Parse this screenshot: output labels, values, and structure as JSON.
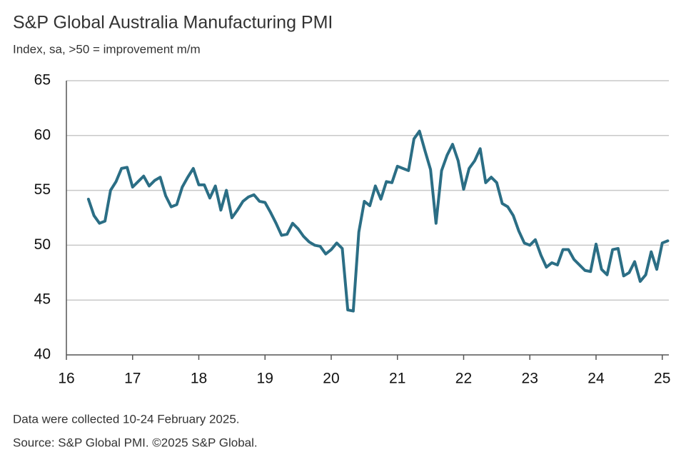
{
  "chart_data": {
    "type": "line",
    "title": "S&P Global Australia Manufacturing PMI",
    "subtitle": "Index, sa, >50 = improvement m/m",
    "notes": [
      "Data were collected 10-24 February 2025.",
      "Source: S&P Global PMI. ©2025 S&P Global."
    ],
    "x": [
      16.333,
      16.417,
      16.5,
      16.583,
      16.667,
      16.75,
      16.833,
      16.917,
      17,
      17.083,
      17.167,
      17.25,
      17.333,
      17.417,
      17.5,
      17.583,
      17.667,
      17.75,
      17.833,
      17.917,
      18,
      18.083,
      18.167,
      18.25,
      18.333,
      18.417,
      18.5,
      18.583,
      18.667,
      18.75,
      18.833,
      18.917,
      19,
      19.083,
      19.167,
      19.25,
      19.333,
      19.417,
      19.5,
      19.583,
      19.667,
      19.75,
      19.833,
      19.917,
      20,
      20.083,
      20.167,
      20.25,
      20.333,
      20.417,
      20.5,
      20.583,
      20.667,
      20.75,
      20.833,
      20.917,
      21,
      21.083,
      21.167,
      21.25,
      21.333,
      21.417,
      21.5,
      21.583,
      21.667,
      21.75,
      21.833,
      21.917,
      22,
      22.083,
      22.167,
      22.25,
      22.333,
      22.417,
      22.5,
      22.583,
      22.667,
      22.75,
      22.833,
      22.917,
      23,
      23.083,
      23.167,
      23.25,
      23.333,
      23.417,
      23.5,
      23.583,
      23.667,
      23.75,
      23.833,
      23.917,
      24,
      24.083,
      24.167,
      24.25,
      24.333,
      24.417,
      24.5,
      24.583,
      24.667,
      24.75,
      24.833,
      24.917,
      25,
      25.083
    ],
    "series": [
      {
        "name": "PMI",
        "color": "#2b6e85",
        "values": [
          54.2,
          52.7,
          52.0,
          52.2,
          55.0,
          55.8,
          57.0,
          57.1,
          55.3,
          55.8,
          56.3,
          55.4,
          55.9,
          56.2,
          54.5,
          53.5,
          53.7,
          55.3,
          56.2,
          57.0,
          55.5,
          55.5,
          54.3,
          55.4,
          53.2,
          55.0,
          52.5,
          53.2,
          54.0,
          54.4,
          54.6,
          54.0,
          53.9,
          53.0,
          52.0,
          50.9,
          51.0,
          52.0,
          51.5,
          50.8,
          50.3,
          50.0,
          49.9,
          49.2,
          49.6,
          50.2,
          49.7,
          44.1,
          44.0,
          51.2,
          54.0,
          53.6,
          55.4,
          54.2,
          55.8,
          55.7,
          57.2,
          57.0,
          56.8,
          59.7,
          60.4,
          58.6,
          56.9,
          52.0,
          56.8,
          58.2,
          59.2,
          57.7,
          55.1,
          57.0,
          57.7,
          58.8,
          55.7,
          56.2,
          55.7,
          53.8,
          53.5,
          52.7,
          51.3,
          50.2,
          50.0,
          50.5,
          49.1,
          48.0,
          48.4,
          48.2,
          49.6,
          49.6,
          48.7,
          48.2,
          47.7,
          47.6,
          50.1,
          47.8,
          47.3,
          49.6,
          49.7,
          47.2,
          47.5,
          48.5,
          46.7,
          47.3,
          49.4,
          47.8,
          50.2,
          50.4
        ]
      }
    ],
    "xlim": [
      16,
      25.1
    ],
    "xticks": [
      16,
      17,
      18,
      19,
      20,
      21,
      22,
      23,
      24,
      25
    ],
    "ylim": [
      40,
      65
    ],
    "yticks": [
      40,
      45,
      50,
      55,
      60,
      65
    ],
    "grid": true
  }
}
